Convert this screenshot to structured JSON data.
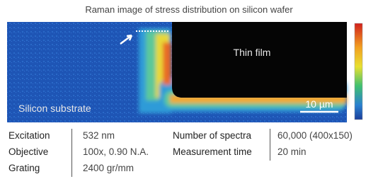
{
  "figure": {
    "title": "Raman image of stress distribution on silicon wafer",
    "labels": {
      "film": "Thin film",
      "substrate": "Silicon substrate",
      "scale": "10 µm"
    }
  },
  "table": {
    "rows": [
      [
        "Excitation",
        "532 nm",
        "Number of spectra",
        "60,000 (400x150)"
      ],
      [
        "Objective",
        "100x, 0.90 N.A.",
        "Measurement time",
        "20 min"
      ],
      [
        "Grating",
        "2400 gr/mm"
      ]
    ]
  }
}
